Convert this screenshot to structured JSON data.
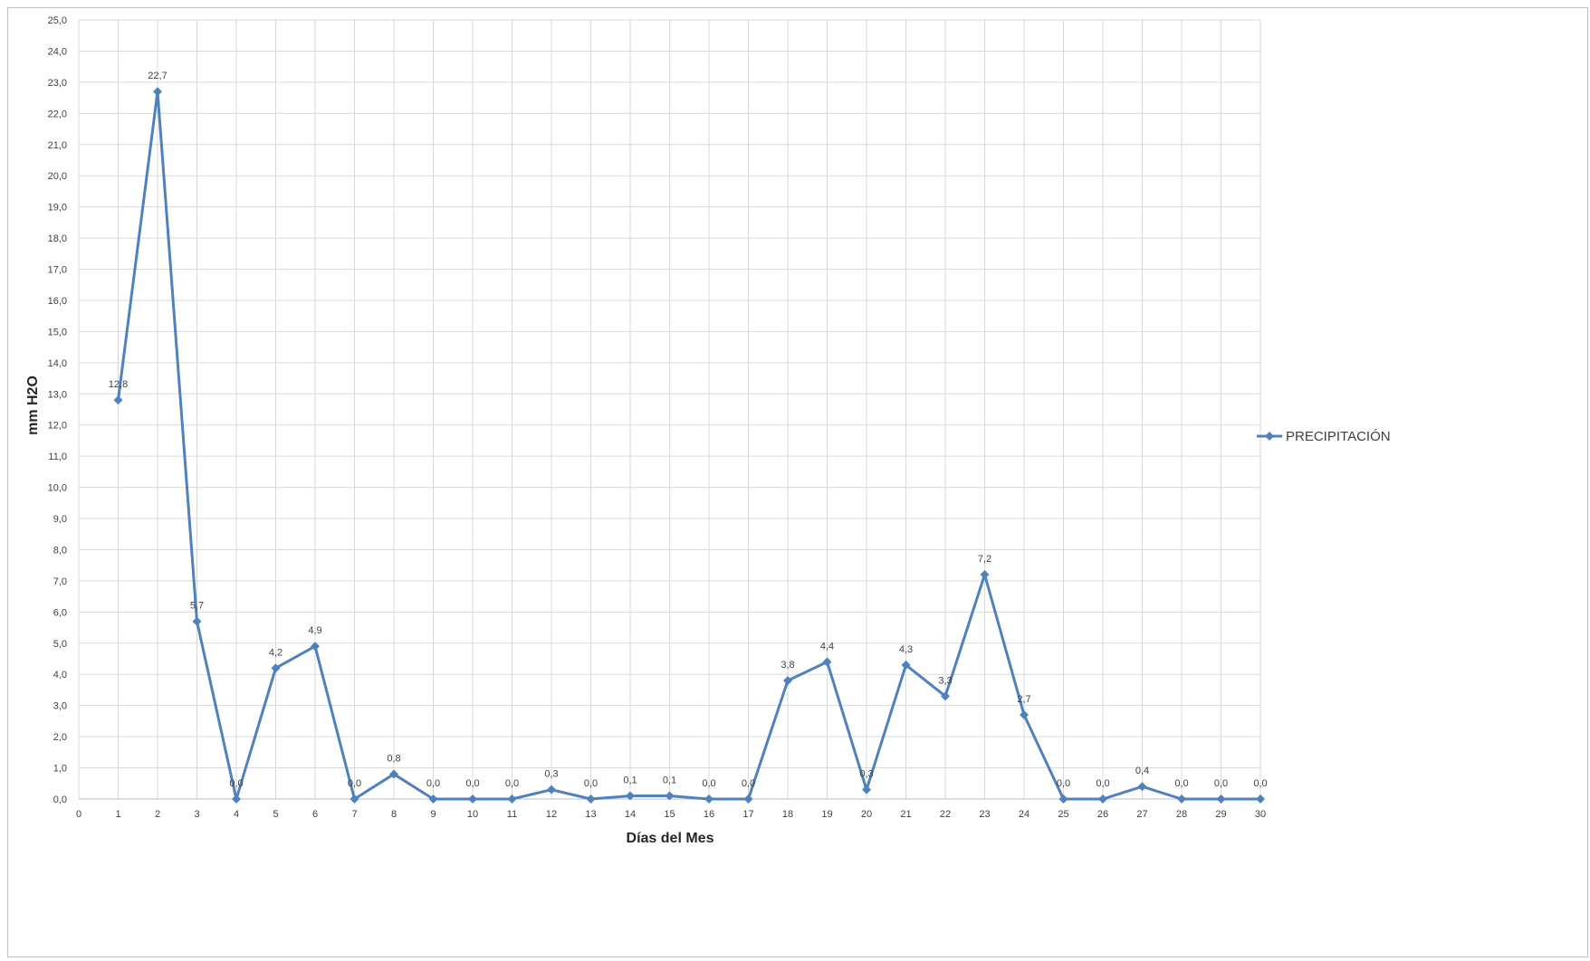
{
  "chart_data": {
    "type": "line",
    "title": "",
    "xlabel": "Días del Mes",
    "ylabel": "mm H2O",
    "xlim": [
      0,
      30
    ],
    "ylim": [
      0,
      25
    ],
    "x_ticks": [
      "0",
      "1",
      "2",
      "3",
      "4",
      "5",
      "6",
      "7",
      "8",
      "9",
      "10",
      "11",
      "12",
      "13",
      "14",
      "15",
      "16",
      "17",
      "18",
      "19",
      "20",
      "21",
      "22",
      "23",
      "24",
      "25",
      "26",
      "27",
      "28",
      "29",
      "30"
    ],
    "y_ticks": [
      "0,0",
      "1,0",
      "2,0",
      "3,0",
      "4,0",
      "5,0",
      "6,0",
      "7,0",
      "8,0",
      "9,0",
      "10,0",
      "11,0",
      "12,0",
      "13,0",
      "14,0",
      "15,0",
      "16,0",
      "17,0",
      "18,0",
      "19,0",
      "20,0",
      "21,0",
      "22,0",
      "23,0",
      "24,0",
      "25,0"
    ],
    "grid": true,
    "legend_position": "right",
    "series": [
      {
        "name": "PRECIPITACIÓN",
        "color": "#4f81bd",
        "marker": "diamond",
        "x": [
          1,
          2,
          3,
          4,
          5,
          6,
          7,
          8,
          9,
          10,
          11,
          12,
          13,
          14,
          15,
          16,
          17,
          18,
          19,
          20,
          21,
          22,
          23,
          24,
          25,
          26,
          27,
          28,
          29,
          30
        ],
        "values": [
          12.8,
          22.7,
          5.7,
          0.0,
          4.2,
          4.9,
          0.0,
          0.8,
          0.0,
          0.0,
          0.0,
          0.3,
          0.0,
          0.1,
          0.1,
          0.0,
          0.0,
          3.8,
          4.4,
          0.3,
          4.3,
          3.3,
          7.2,
          2.7,
          0.0,
          0.0,
          0.4,
          0.0,
          0.0,
          0.0
        ],
        "labels": [
          "12,8",
          "22,7",
          "5,7",
          "0,0",
          "4,2",
          "4,9",
          "0,0",
          "0,8",
          "0,0",
          "0,0",
          "0,0",
          "0,3",
          "0,0",
          "0,1",
          "0,1",
          "0,0",
          "0,0",
          "3,8",
          "4,4",
          "0,3",
          "4,3",
          "3,3",
          "7,2",
          "2,7",
          "0,0",
          "0,0",
          "0,4",
          "0,0",
          "0,0",
          "0,0"
        ]
      }
    ]
  }
}
